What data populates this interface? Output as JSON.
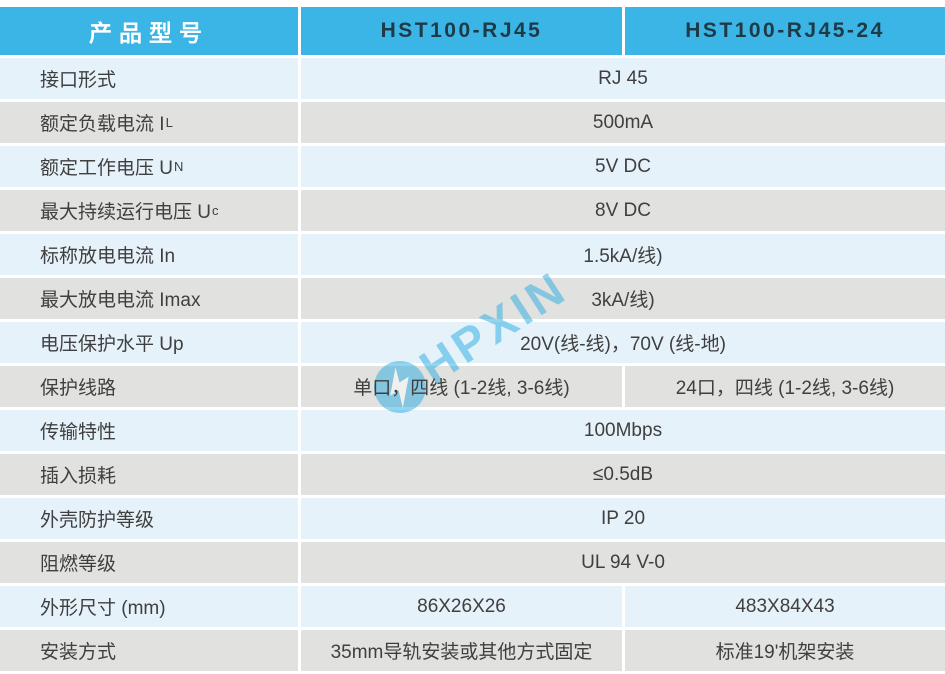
{
  "table": {
    "header": {
      "col1": "产品型号",
      "col2": "HST100-RJ45",
      "col3": "HST100-RJ45-24"
    },
    "rows": [
      {
        "label": "接口形式",
        "sub": "",
        "span": "RJ 45"
      },
      {
        "label": "额定负载电流 I",
        "sub": "L",
        "span": "500mA"
      },
      {
        "label": "额定工作电压 U",
        "sub": "N",
        "span": "5V DC"
      },
      {
        "label": "最大持续运行电压 U",
        "sub": "c",
        "span": "8V DC"
      },
      {
        "label": "标称放电电流 In",
        "sub": "",
        "span": "1.5kA/线)"
      },
      {
        "label": "最大放电电流 Imax",
        "sub": "",
        "span": "3kA/线)"
      },
      {
        "label": "电压保护水平 Up",
        "sub": "",
        "span": "20V(线-线)，70V (线-地)"
      },
      {
        "label": "保护线路",
        "sub": "",
        "col2": "单口，四线 (1-2线, 3-6线)",
        "col3": "24口，四线 (1-2线, 3-6线)"
      },
      {
        "label": "传输特性",
        "sub": "",
        "span": "100Mbps"
      },
      {
        "label": "插入损耗",
        "sub": "",
        "span": "≤0.5dB"
      },
      {
        "label": "外壳防护等级",
        "sub": "",
        "span": "IP 20"
      },
      {
        "label": "阻燃等级",
        "sub": "",
        "span": "UL 94 V-0"
      },
      {
        "label": "外形尺寸 (mm)",
        "sub": "",
        "col2": "86X26X26",
        "col3": "483X84X43"
      },
      {
        "label": "安装方式",
        "sub": "",
        "col2": "35mm导轨安装或其他方式固定",
        "col3": "标准19'机架安装"
      }
    ]
  },
  "watermark": {
    "text": "HPXIN",
    "logo": "lightning-bolt-circle-icon"
  },
  "colors": {
    "header_bg": "#3AB5E6",
    "header_text": "#FFFFFF",
    "model_text": "#1F3A47",
    "row_blue": "#E6F2FA",
    "row_gray": "#E1E2DF",
    "body_text": "#3F3F3F",
    "watermark": "#29ABE2"
  }
}
